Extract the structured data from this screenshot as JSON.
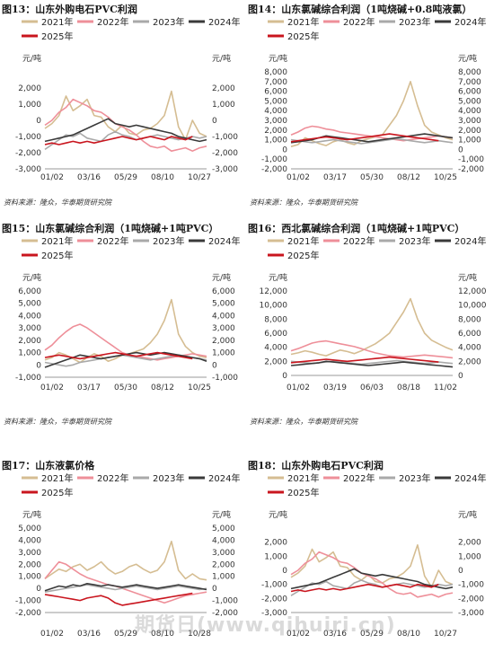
{
  "source_text": "资料来源：隆众，华泰期货研究院",
  "watermark": "期货日(www.qihuiri.cn)",
  "colors": {
    "2021年": "#d5bd92",
    "2022年": "#ee8f99",
    "2023年": "#a9a9a9",
    "2024年": "#3a3a3a",
    "2025年": "#c9151e"
  },
  "chart_data": [
    {
      "type": "line",
      "title": "图13：山东外购电石PVC利润",
      "ylabel_left": "元/吨",
      "ylabel_right": "元/吨",
      "ylim": [
        -3000,
        3000
      ],
      "yticks": [
        -3000,
        -1000,
        1000
      ],
      "ytick_labels": [
        "-3,000",
        "-1,000",
        "1,000"
      ],
      "ytick_labels_full": [
        "2,000",
        "1,000",
        "0",
        "-1,000",
        "-2,000",
        "-3,000"
      ],
      "xticks": [
        "01/02",
        "03/16",
        "05/29",
        "08/10",
        "10/27"
      ],
      "series": [
        {
          "name": "2021年",
          "values": [
            -500,
            -200,
            300,
            1500,
            600,
            900,
            1300,
            300,
            200,
            -400,
            -700,
            -300,
            -800,
            -900,
            -600,
            -500,
            -200,
            300,
            1800,
            -400,
            -1200,
            0,
            -800,
            -1000
          ]
        },
        {
          "name": "2022年",
          "values": [
            -300,
            0,
            500,
            800,
            1300,
            1100,
            900,
            600,
            500,
            200,
            -200,
            -400,
            -600,
            -900,
            -1300,
            -1600,
            -1700,
            -1600,
            -1900,
            -1800,
            -1700,
            -1900,
            -1700,
            -1600
          ]
        },
        {
          "name": "2023年",
          "values": [
            -1800,
            -1500,
            -1200,
            -900,
            -1000,
            -800,
            -1100,
            -1200,
            -1300,
            -900,
            -700,
            -900,
            -1000,
            -1200,
            -1100,
            -1000,
            -900,
            -1000,
            -1100,
            -1200,
            -1100,
            -1000,
            -1100,
            -1000
          ]
        },
        {
          "name": "2024年",
          "values": [
            -1300,
            -1200,
            -1100,
            -1000,
            -900,
            -700,
            -500,
            -300,
            -100,
            100,
            -200,
            -300,
            -400,
            -300,
            -400,
            -500,
            -600,
            -700,
            -800,
            -1000,
            -1100,
            -1200,
            -1300,
            -1200
          ]
        },
        {
          "name": "2025年",
          "values": [
            -1500,
            -1400,
            -1500,
            -1400,
            -1300,
            -1400,
            -1300,
            -1400,
            -1300,
            -1200,
            -1100,
            -1000,
            -1100,
            -1200,
            -1100,
            -1000,
            -1100,
            -1200,
            -1000,
            -1100,
            -1200,
            -1000,
            null,
            null
          ]
        }
      ]
    },
    {
      "type": "line",
      "title": "图14：山东氯碱综合利润（1吨烧碱+0.8吨液氯）",
      "ylabel_left": "元/吨",
      "ylabel_right": "元/吨",
      "ylim": [
        -2000,
        8000
      ],
      "ytick_labels_full": [
        "8,000",
        "7,000",
        "6,000",
        "5,000",
        "4,000",
        "3,000",
        "2,000",
        "1,000",
        "0",
        "-1,000",
        "-2,000"
      ],
      "xticks": [
        "01/02",
        "03/17",
        "05/30",
        "08/12",
        "10/25"
      ],
      "series": [
        {
          "name": "2021年",
          "values": [
            300,
            500,
            1200,
            900,
            600,
            400,
            800,
            1000,
            700,
            500,
            900,
            1100,
            1300,
            1500,
            2500,
            3500,
            5000,
            7000,
            4500,
            2500,
            1800,
            1500,
            1200,
            1000
          ]
        },
        {
          "name": "2022年",
          "values": [
            1500,
            1800,
            2200,
            2400,
            2300,
            2100,
            2000,
            1800,
            1700,
            1600,
            1500,
            1400,
            1300,
            1200,
            1100,
            1000,
            900,
            1000,
            1100,
            1200,
            1300,
            1400,
            1300,
            1200
          ]
        },
        {
          "name": "2023年",
          "values": [
            1000,
            900,
            800,
            700,
            800,
            900,
            1000,
            900,
            800,
            700,
            600,
            700,
            800,
            900,
            1000,
            1100,
            1000,
            900,
            800,
            700,
            800,
            900,
            800,
            700
          ]
        },
        {
          "name": "2024年",
          "values": [
            700,
            800,
            900,
            1000,
            1200,
            1400,
            1300,
            1200,
            1100,
            1000,
            900,
            800,
            900,
            1000,
            1100,
            1200,
            1300,
            1400,
            1500,
            1600,
            1500,
            1400,
            1300,
            1200
          ]
        },
        {
          "name": "2025年",
          "values": [
            800,
            900,
            1000,
            1100,
            1200,
            1300,
            1200,
            1100,
            1000,
            1100,
            1200,
            1300,
            1400,
            1500,
            1600,
            1500,
            1400,
            1300,
            1200,
            1100,
            1000,
            900,
            null,
            null
          ]
        }
      ]
    },
    {
      "type": "line",
      "title": "图15：山东氯碱综合利润（1吨烧碱+1吨PVC）",
      "ylabel_left": "元/吨",
      "ylabel_right": "元/吨",
      "ylim": [
        -1000,
        6000
      ],
      "ytick_labels_full": [
        "6,000",
        "5,000",
        "4,000",
        "3,000",
        "2,000",
        "1,000",
        "0",
        "-1,000"
      ],
      "xticks": [
        "01/02",
        "03/17",
        "05/30",
        "08/12",
        "10/25"
      ],
      "series": [
        {
          "name": "2021年",
          "values": [
            400,
            600,
            1000,
            800,
            500,
            200,
            600,
            900,
            700,
            300,
            500,
            800,
            900,
            1100,
            1300,
            1800,
            2500,
            3600,
            5300,
            2500,
            1500,
            1000,
            700,
            600
          ]
        },
        {
          "name": "2022年",
          "values": [
            1200,
            1600,
            2200,
            2700,
            3100,
            3300,
            3000,
            2600,
            2200,
            1800,
            1400,
            1000,
            800,
            700,
            600,
            500,
            400,
            500,
            600,
            700,
            800,
            900,
            800,
            700
          ]
        },
        {
          "name": "2023年",
          "values": [
            200,
            100,
            0,
            -100,
            0,
            200,
            300,
            400,
            500,
            600,
            700,
            800,
            700,
            600,
            500,
            400,
            500,
            600,
            700,
            800,
            700,
            600,
            500,
            400
          ]
        },
        {
          "name": "2024年",
          "values": [
            -200,
            0,
            200,
            400,
            600,
            800,
            700,
            600,
            500,
            600,
            700,
            800,
            900,
            1000,
            900,
            800,
            900,
            1000,
            900,
            800,
            700,
            600,
            500,
            300
          ]
        },
        {
          "name": "2025年",
          "values": [
            600,
            700,
            800,
            700,
            600,
            500,
            600,
            700,
            800,
            900,
            1000,
            900,
            800,
            700,
            800,
            900,
            1000,
            900,
            800,
            700,
            600,
            500,
            null,
            null
          ]
        }
      ]
    },
    {
      "type": "line",
      "title": "图16：西北氯碱综合利润（1吨烧碱+1吨PVC）",
      "ylabel_left": "元/吨",
      "ylabel_right": "元/吨",
      "ylim": [
        0,
        12000
      ],
      "ytick_labels_full": [
        "12,000",
        "10,000",
        "8,000",
        "6,000",
        "4,000",
        "2,000",
        "0"
      ],
      "xticks": [
        "01/02",
        "03/19",
        "06/03",
        "08/18",
        "11/02"
      ],
      "series": [
        {
          "name": "2021年",
          "values": [
            3000,
            3200,
            3500,
            3300,
            3000,
            2800,
            3200,
            3600,
            3400,
            3100,
            3500,
            4000,
            4500,
            5200,
            6000,
            7500,
            9000,
            10900,
            8000,
            6000,
            5000,
            4500,
            4000,
            3600
          ]
        },
        {
          "name": "2022年",
          "values": [
            3500,
            3800,
            4200,
            4600,
            4800,
            4900,
            4700,
            4500,
            4300,
            4100,
            3800,
            3500,
            3200,
            3000,
            2800,
            2700,
            2600,
            2700,
            2800,
            2900,
            2800,
            2700,
            2600,
            2500
          ]
        },
        {
          "name": "2023年",
          "values": [
            2000,
            1900,
            1800,
            1700,
            1800,
            1900,
            2000,
            1900,
            1800,
            1700,
            1600,
            1700,
            1800,
            1900,
            2000,
            2100,
            2000,
            1900,
            1800,
            1700,
            1800,
            1900,
            1800,
            1700
          ]
        },
        {
          "name": "2024年",
          "values": [
            1400,
            1500,
            1600,
            1700,
            1800,
            2000,
            1900,
            1800,
            1700,
            1600,
            1500,
            1400,
            1500,
            1600,
            1700,
            1800,
            1900,
            1800,
            1700,
            1600,
            1500,
            1400,
            1300,
            1200
          ]
        },
        {
          "name": "2025年",
          "values": [
            1800,
            1900,
            2000,
            2100,
            2200,
            2300,
            2200,
            2100,
            2000,
            2100,
            2200,
            2300,
            2400,
            2500,
            2600,
            2500,
            2400,
            2300,
            2200,
            2100,
            2000,
            1900,
            null,
            null
          ]
        }
      ]
    },
    {
      "type": "line",
      "title": "图17：山东液氯价格",
      "ylabel_left": "元/吨",
      "ylabel_right": "元/吨",
      "ylim": [
        -2000,
        5000
      ],
      "ytick_labels_full": [
        "5,000",
        "4,000",
        "3,000",
        "2,000",
        "1,000",
        "0",
        "-1,000",
        "-2,000"
      ],
      "xticks": [
        "01/02",
        "03/16",
        "05/29",
        "08/10",
        "10/28"
      ],
      "series": [
        {
          "name": "2021年",
          "values": [
            800,
            1200,
            1600,
            1400,
            1800,
            2000,
            1500,
            1800,
            2200,
            1600,
            1200,
            1400,
            1800,
            2000,
            1600,
            1300,
            1500,
            2200,
            3900,
            1500,
            800,
            1200,
            800,
            700
          ]
        },
        {
          "name": "2022年",
          "values": [
            800,
            1500,
            2200,
            2000,
            1600,
            1200,
            900,
            700,
            500,
            300,
            200,
            0,
            -200,
            -400,
            -600,
            -800,
            -1000,
            -1200,
            -1000,
            -800,
            -600,
            -500,
            -400,
            -300
          ]
        },
        {
          "name": "2023年",
          "values": [
            -300,
            -200,
            -100,
            0,
            100,
            200,
            300,
            200,
            100,
            0,
            -100,
            0,
            100,
            200,
            100,
            0,
            -100,
            0,
            100,
            200,
            100,
            0,
            -100,
            0
          ]
        },
        {
          "name": "2024年",
          "values": [
            -200,
            0,
            200,
            100,
            300,
            200,
            400,
            300,
            200,
            300,
            200,
            100,
            200,
            300,
            200,
            100,
            0,
            100,
            200,
            300,
            200,
            100,
            0,
            -100
          ]
        },
        {
          "name": "2025年",
          "values": [
            -500,
            -600,
            -700,
            -800,
            -900,
            -1000,
            -800,
            -700,
            -600,
            -800,
            -1200,
            -1400,
            -1300,
            -1200,
            -1100,
            -1000,
            -900,
            -800,
            -700,
            -600,
            -500,
            -400,
            null,
            null
          ]
        }
      ]
    },
    {
      "type": "line",
      "title": "图18：山东外购电石PVC利润",
      "ylabel_left": "元/吨",
      "ylabel_right": "元/吨",
      "ylim": [
        -3000,
        3000
      ],
      "ytick_labels_full": [
        "2,000",
        "1,000",
        "0",
        "-1,000",
        "-2,000",
        "-3,000"
      ],
      "xticks": [
        "01/02",
        "03/16",
        "05/29",
        "08/10",
        "10/27"
      ],
      "series": [
        {
          "name": "2021年",
          "values": [
            -500,
            -200,
            300,
            1500,
            600,
            900,
            1300,
            300,
            200,
            -400,
            -700,
            -300,
            -800,
            -900,
            -600,
            -500,
            -200,
            300,
            1800,
            -400,
            -1200,
            0,
            -800,
            -1000
          ]
        },
        {
          "name": "2022年",
          "values": [
            -300,
            0,
            500,
            800,
            1300,
            1100,
            900,
            600,
            500,
            200,
            -200,
            -400,
            -600,
            -900,
            -1300,
            -1600,
            -1700,
            -1600,
            -1900,
            -1800,
            -1700,
            -1900,
            -1700,
            -1600
          ]
        },
        {
          "name": "2023年",
          "values": [
            -1800,
            -1500,
            -1200,
            -900,
            -1000,
            -800,
            -1100,
            -1200,
            -1300,
            -900,
            -700,
            -900,
            -1000,
            -1200,
            -1100,
            -1000,
            -900,
            -1000,
            -1100,
            -1200,
            -1100,
            -1000,
            -1100,
            -1000
          ]
        },
        {
          "name": "2024年",
          "values": [
            -1300,
            -1200,
            -1100,
            -1000,
            -900,
            -700,
            -500,
            -300,
            -100,
            100,
            -200,
            -300,
            -400,
            -300,
            -400,
            -500,
            -600,
            -700,
            -800,
            -1000,
            -1100,
            -1200,
            -1300,
            -1200
          ]
        },
        {
          "name": "2025年",
          "values": [
            -1500,
            -1400,
            -1500,
            -1400,
            -1300,
            -1400,
            -1300,
            -1400,
            -1300,
            -1200,
            -1100,
            -1000,
            -1100,
            -1200,
            -1100,
            -1000,
            -1100,
            -1200,
            -1000,
            -1100,
            -1200,
            -1000,
            null,
            null
          ]
        }
      ]
    }
  ]
}
